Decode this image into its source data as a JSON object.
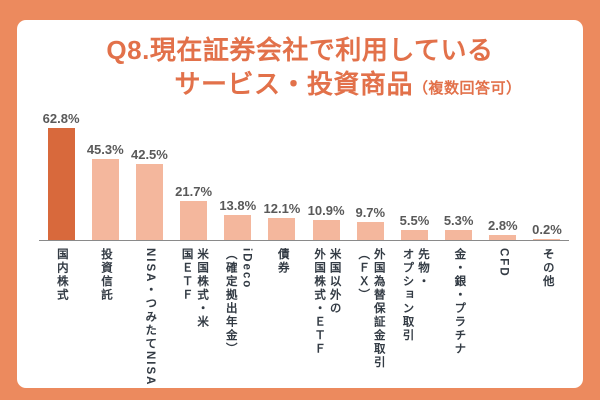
{
  "title": {
    "line1": "Q8.現在証券会社で利用している",
    "line2_main": "サービス・投資商品",
    "line2_suffix": "（複数回答可）"
  },
  "chart_data": {
    "type": "bar",
    "title": "Q8.現在証券会社で利用しているサービス・投資商品（複数回答可）",
    "categories": [
      "国内株式",
      "投資信託",
      "NISA・つみたてNISA",
      "米国株式・米国ETF",
      "iDeco（確定拠出年金）",
      "債券",
      "米国以外の外国株式・ETF",
      "外国為替保証金取引（FX）",
      "先物・オプション取引",
      "金・銀・プラチナ",
      "CFD",
      "その他"
    ],
    "category_display": [
      "国内株式",
      "投資信託",
      "NISA・つみたてNISA",
      "米国株式・米\n国ＥＴＦ",
      "iDeco\n（確定拠出年金）",
      "債券",
      "米国以外の\n外国株式・ＥＴＦ",
      "外国為替保証金取引\n（ＦＸ）",
      "先物・\nオプション取引",
      "金・銀・プラチナ",
      "CFD",
      "その他"
    ],
    "values": [
      62.8,
      45.3,
      42.5,
      21.7,
      13.8,
      12.1,
      10.9,
      9.7,
      5.5,
      5.3,
      2.8,
      0.2
    ],
    "value_labels": [
      "62.8%",
      "45.3%",
      "42.5%",
      "21.7%",
      "13.8%",
      "12.1%",
      "10.9%",
      "9.7%",
      "5.5%",
      "5.3%",
      "2.8%",
      "0.2%"
    ],
    "unit": "%",
    "ylim": [
      0,
      65
    ],
    "grid": false,
    "legend": "none",
    "orientation": "vertical",
    "colors": {
      "highlight_bar": "#D8693C",
      "normal_bar": "#F4B79D",
      "frame": "#EC8A5E",
      "title_text": "#E2714A",
      "value_text": "#595959",
      "label_text": "#333B44",
      "axis": "#8a8a8a"
    }
  }
}
